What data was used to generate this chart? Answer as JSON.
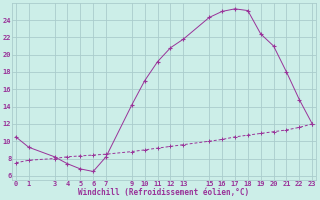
{
  "xlabel": "Windchill (Refroidissement éolien,°C)",
  "background_color": "#cceee8",
  "grid_color": "#aacccc",
  "line_color": "#993399",
  "line1_x": [
    0,
    1,
    3,
    4,
    5,
    6,
    7,
    9,
    10,
    11,
    12,
    13,
    15,
    16,
    17,
    18,
    19,
    20,
    21,
    22,
    23
  ],
  "line1_y": [
    10.5,
    9.3,
    8.2,
    7.4,
    6.8,
    6.5,
    8.2,
    14.2,
    17.0,
    19.2,
    20.8,
    21.8,
    24.3,
    25.0,
    25.3,
    25.1,
    22.4,
    21.0,
    18.0,
    14.8,
    12.0
  ],
  "line2_x": [
    0,
    1,
    3,
    4,
    5,
    6,
    7,
    9,
    10,
    11,
    12,
    13,
    15,
    16,
    17,
    18,
    19,
    20,
    21,
    22,
    23
  ],
  "line2_y": [
    7.5,
    7.8,
    8.0,
    8.2,
    8.3,
    8.4,
    8.5,
    8.8,
    9.0,
    9.2,
    9.4,
    9.6,
    10.0,
    10.2,
    10.5,
    10.7,
    10.9,
    11.1,
    11.3,
    11.6,
    12.0
  ],
  "xlim": [
    -0.3,
    23.3
  ],
  "ylim": [
    5.5,
    26.0
  ],
  "yticks": [
    6,
    8,
    10,
    12,
    14,
    16,
    18,
    20,
    22,
    24
  ],
  "xticks": [
    0,
    1,
    3,
    4,
    5,
    6,
    7,
    9,
    10,
    11,
    12,
    13,
    15,
    16,
    17,
    18,
    19,
    20,
    21,
    22,
    23
  ],
  "tick_fontsize": 5.0,
  "xlabel_fontsize": 5.5
}
